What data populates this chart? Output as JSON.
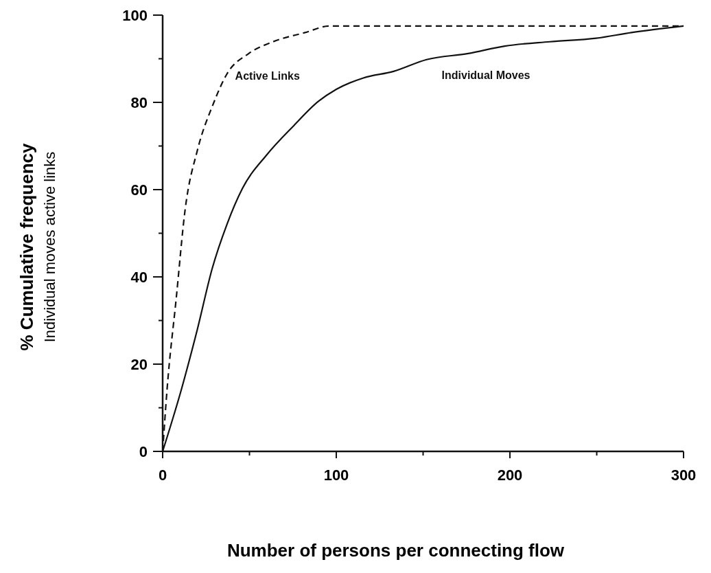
{
  "chart_data": {
    "type": "line",
    "xlabel": "Number of persons per connecting flow",
    "ylabel": "% Cumulative frequency\nIndividual moves  active links",
    "xlim": [
      0,
      300
    ],
    "ylim": [
      0,
      100
    ],
    "xticks": [
      0,
      {
        "value": 50,
        "label": null
      },
      100,
      {
        "value": 150,
        "label": null
      },
      200,
      {
        "value": 250,
        "label": null
      },
      300
    ],
    "yticks": [
      0,
      {
        "value": 10,
        "label": null
      },
      20,
      {
        "value": 30,
        "label": null
      },
      40,
      {
        "value": 50,
        "label": null
      },
      60,
      {
        "value": 70,
        "label": null
      },
      80,
      {
        "value": 90,
        "label": null
      },
      100
    ],
    "grid": false,
    "marker": "none",
    "series": [
      {
        "name": "Active Links",
        "color": "#111111",
        "line_style": "dashed",
        "x": [
          0,
          2.6,
          7.8,
          13,
          20,
          29,
          37,
          49.6,
          63.6,
          82,
          96,
          150,
          200,
          250,
          300
        ],
        "values": [
          0,
          14.5,
          35,
          55.6,
          69,
          79.5,
          86.5,
          91.2,
          93.9,
          96,
          97.5,
          97.5,
          97.5,
          97.5,
          97.5
        ]
      },
      {
        "name": "Individual Moves",
        "color": "#111111",
        "line_style": "solid",
        "x": [
          0,
          11,
          20,
          28.6,
          37,
          46,
          60,
          75.6,
          89.6,
          100,
          115.6,
          133,
          152,
          176,
          197,
          223,
          249.6,
          270,
          300
        ],
        "values": [
          0,
          14.5,
          28,
          42,
          52,
          60.3,
          68,
          74.7,
          80.2,
          83,
          85.6,
          87.1,
          89.8,
          91.2,
          92.9,
          93.9,
          94.7,
          96,
          97.5
        ]
      }
    ]
  }
}
